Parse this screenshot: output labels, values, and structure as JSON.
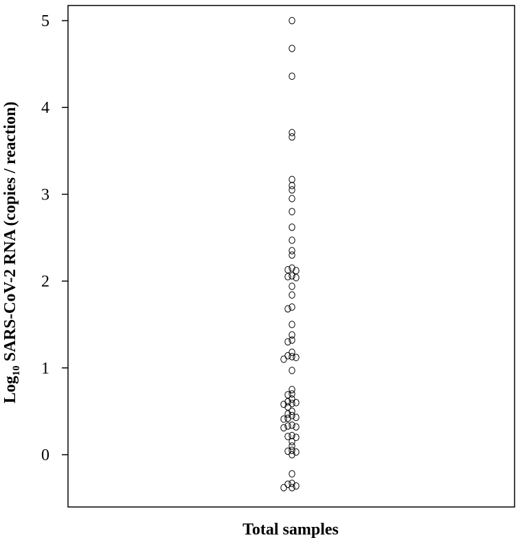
{
  "chart_data": {
    "type": "scatter",
    "title": "",
    "xlabel": "Total samples",
    "ylabel": {
      "prefix": "Log",
      "subscript": "10",
      "rest": " SARS-CoV-2 RNA (copies / reaction)"
    },
    "ylim": [
      -0.6,
      5.15
    ],
    "yticks": [
      0,
      1,
      2,
      3,
      4,
      5
    ],
    "ytick_labels": [
      "0",
      "1",
      "2",
      "3",
      "4",
      "5"
    ],
    "grid": false,
    "legend": "none",
    "marker": "open-circle",
    "series": [
      {
        "category": "Total samples",
        "values": [
          5.0,
          4.68,
          4.36,
          3.71,
          3.66,
          3.17,
          3.1,
          3.05,
          2.95,
          2.8,
          2.62,
          2.47,
          2.35,
          2.3,
          2.15,
          2.13,
          2.12,
          2.06,
          2.05,
          2.04,
          1.94,
          1.84,
          1.7,
          1.68,
          1.5,
          1.38,
          1.32,
          1.3,
          1.18,
          1.14,
          1.13,
          1.12,
          1.1,
          0.97,
          0.75,
          0.7,
          0.69,
          0.64,
          0.61,
          0.6,
          0.59,
          0.58,
          0.55,
          0.5,
          0.47,
          0.45,
          0.43,
          0.42,
          0.41,
          0.34,
          0.33,
          0.32,
          0.31,
          0.22,
          0.21,
          0.2,
          0.15,
          0.1,
          0.05,
          0.04,
          0.03,
          0.0,
          -0.22,
          -0.33,
          -0.34,
          -0.36,
          -0.38,
          -0.38
        ]
      }
    ]
  }
}
